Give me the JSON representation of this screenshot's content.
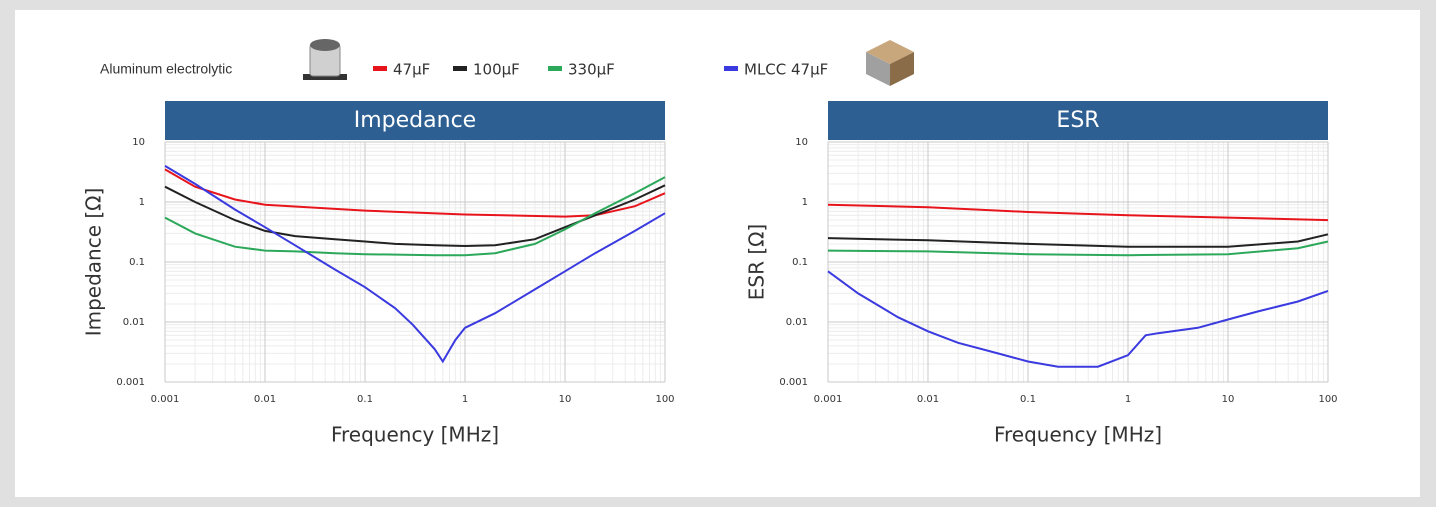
{
  "chart_data": [
    {
      "type": "line",
      "title": "Impedance",
      "legend_title": "Aluminum electrolytic",
      "xlabel": "Frequency [MHz]",
      "ylabel": "Impedance [Ω]",
      "xscale": "log",
      "yscale": "log",
      "grid": true,
      "xlim": [
        0.001,
        100
      ],
      "xticks": [
        0.001,
        0.01,
        0.1,
        1,
        10,
        100
      ],
      "ylim": [
        0.001,
        10
      ],
      "yticks": [
        0.001,
        0.01,
        0.1,
        1,
        10
      ],
      "series": [
        {
          "name": "47μF",
          "color": "#e8141c",
          "x": [
            0.001,
            0.002,
            0.005,
            0.01,
            0.1,
            1,
            10,
            20,
            50,
            100
          ],
          "values": [
            3.5,
            1.8,
            1.1,
            0.9,
            0.72,
            0.62,
            0.57,
            0.6,
            0.85,
            1.4
          ]
        },
        {
          "name": "100μF",
          "color": "#222222",
          "x": [
            0.001,
            0.002,
            0.005,
            0.01,
            0.02,
            0.05,
            0.1,
            0.2,
            0.5,
            1,
            2,
            5,
            10,
            20,
            50,
            100
          ],
          "values": [
            1.8,
            1.0,
            0.5,
            0.33,
            0.27,
            0.24,
            0.22,
            0.2,
            0.19,
            0.185,
            0.19,
            0.24,
            0.38,
            0.6,
            1.1,
            1.9
          ]
        },
        {
          "name": "330μF",
          "color": "#2ca85a",
          "x": [
            0.001,
            0.002,
            0.005,
            0.01,
            0.02,
            0.05,
            0.1,
            0.5,
            1,
            2,
            5,
            10,
            20,
            50,
            100
          ],
          "values": [
            0.55,
            0.3,
            0.18,
            0.155,
            0.15,
            0.14,
            0.135,
            0.13,
            0.13,
            0.14,
            0.2,
            0.35,
            0.65,
            1.4,
            2.6
          ]
        },
        {
          "name": "MLCC 47μF",
          "color": "#3a3ae0",
          "x": [
            0.001,
            0.002,
            0.005,
            0.01,
            0.02,
            0.05,
            0.1,
            0.2,
            0.3,
            0.5,
            0.6,
            0.8,
            1,
            2,
            5,
            10,
            20,
            50,
            100
          ],
          "values": [
            4,
            2,
            0.75,
            0.38,
            0.19,
            0.075,
            0.038,
            0.017,
            0.009,
            0.0035,
            0.0022,
            0.005,
            0.008,
            0.014,
            0.035,
            0.07,
            0.14,
            0.33,
            0.65
          ]
        }
      ]
    },
    {
      "type": "line",
      "title": "ESR",
      "xlabel": "Frequency [MHz]",
      "ylabel": "ESR [Ω]",
      "xscale": "log",
      "yscale": "log",
      "grid": true,
      "xlim": [
        0.001,
        100
      ],
      "xticks": [
        0.001,
        0.01,
        0.1,
        1,
        10,
        100
      ],
      "ylim": [
        0.001,
        10
      ],
      "yticks": [
        0.001,
        0.01,
        0.1,
        1,
        10
      ],
      "series": [
        {
          "color": "#e8141c",
          "x": [
            0.001,
            0.01,
            0.1,
            1,
            10,
            100
          ],
          "values": [
            0.9,
            0.82,
            0.68,
            0.6,
            0.55,
            0.5
          ]
        },
        {
          "color": "#222222",
          "x": [
            0.001,
            0.01,
            0.1,
            1,
            10,
            50,
            100
          ],
          "values": [
            0.25,
            0.23,
            0.2,
            0.18,
            0.18,
            0.22,
            0.29
          ]
        },
        {
          "color": "#2ca85a",
          "x": [
            0.001,
            0.01,
            0.1,
            1,
            10,
            50,
            100
          ],
          "values": [
            0.155,
            0.15,
            0.135,
            0.13,
            0.135,
            0.17,
            0.22
          ]
        },
        {
          "color": "#3a3ae0",
          "x": [
            0.001,
            0.002,
            0.005,
            0.01,
            0.02,
            0.05,
            0.1,
            0.2,
            0.5,
            1,
            1.5,
            2,
            5,
            10,
            20,
            50,
            100
          ],
          "values": [
            0.07,
            0.03,
            0.012,
            0.007,
            0.0045,
            0.003,
            0.0022,
            0.0018,
            0.0018,
            0.0028,
            0.006,
            0.0065,
            0.008,
            0.011,
            0.015,
            0.022,
            0.033
          ]
        }
      ]
    }
  ]
}
